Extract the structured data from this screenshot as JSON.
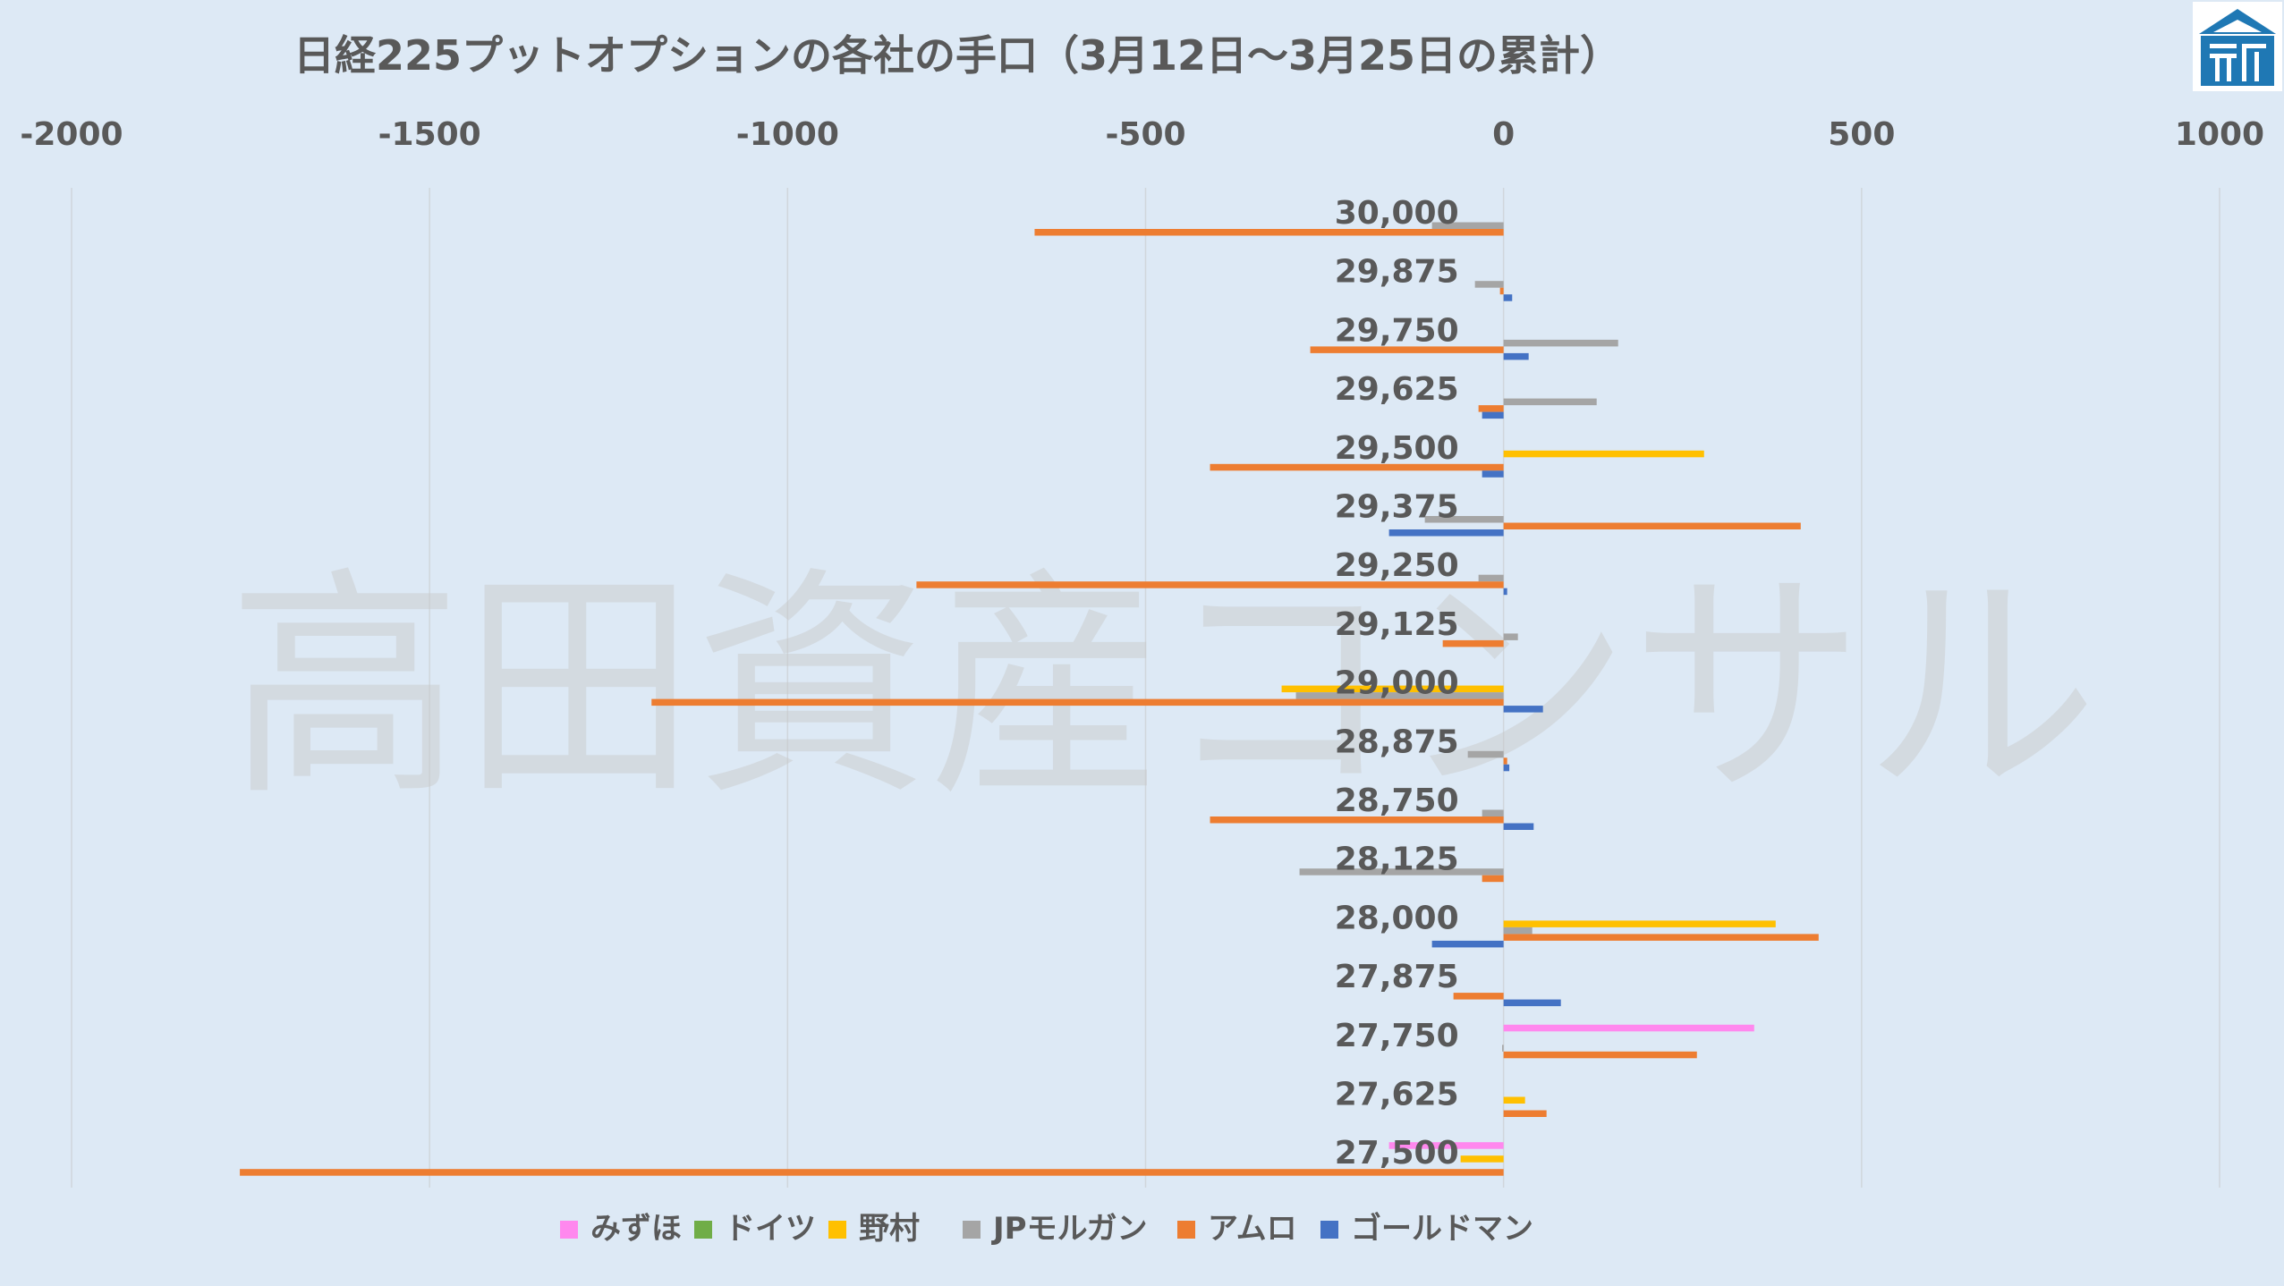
{
  "watermark": "高田資産コンサル",
  "logo": {
    "name": "takata-logo-icon",
    "color": "#1f78b4"
  },
  "chart_data": {
    "type": "bar",
    "orientation": "horizontal",
    "title": "日経225プットオプションの各社の手口（3月12日～3月25日の累計）",
    "xlabel": "",
    "ylabel": "",
    "xlim": [
      -2000,
      1000
    ],
    "xticks": [
      -2000,
      -1500,
      -1000,
      -500,
      0,
      500,
      1000
    ],
    "xtick_labels": [
      "-2000",
      "-1500",
      "-1000",
      "-500",
      "0",
      "500",
      "1000"
    ],
    "grid": true,
    "legend_position": "bottom",
    "categories": [
      "30,000",
      "29,875",
      "29,750",
      "29,625",
      "29,500",
      "29,375",
      "29,250",
      "29,125",
      "29,000",
      "28,875",
      "28,750",
      "28,125",
      "28,000",
      "27,875",
      "27,750",
      "27,625",
      "27,500"
    ],
    "series": [
      {
        "name": "みずほ",
        "color": "#ff88ee",
        "values": [
          0,
          0,
          0,
          0,
          0,
          0,
          0,
          0,
          0,
          0,
          0,
          0,
          0,
          0,
          350,
          0,
          -160
        ]
      },
      {
        "name": "ドイツ",
        "color": "#70ad47",
        "values": [
          0,
          0,
          0,
          0,
          0,
          0,
          0,
          0,
          0,
          0,
          0,
          0,
          0,
          0,
          0,
          0,
          0
        ]
      },
      {
        "name": "野村",
        "color": "#ffc000",
        "values": [
          0,
          0,
          0,
          0,
          280,
          0,
          0,
          0,
          -310,
          0,
          0,
          0,
          380,
          0,
          0,
          30,
          -60
        ]
      },
      {
        "name": "JPモルガン",
        "color": "#a5a5a5",
        "values": [
          -100,
          -40,
          160,
          130,
          0,
          -110,
          -35,
          20,
          -290,
          -50,
          -30,
          -285,
          40,
          0,
          -2,
          0,
          0
        ]
      },
      {
        "name": "アムロ",
        "color": "#ed7d31",
        "values": [
          -655,
          -5,
          -270,
          -35,
          -410,
          415,
          -820,
          -85,
          -1190,
          5,
          -410,
          -30,
          440,
          -70,
          270,
          60,
          -1765
        ]
      },
      {
        "name": "ゴールドマン",
        "color": "#4472c4",
        "values": [
          0,
          12,
          35,
          -30,
          -30,
          -160,
          5,
          0,
          55,
          8,
          42,
          0,
          -100,
          80,
          0,
          0,
          0
        ]
      }
    ]
  }
}
